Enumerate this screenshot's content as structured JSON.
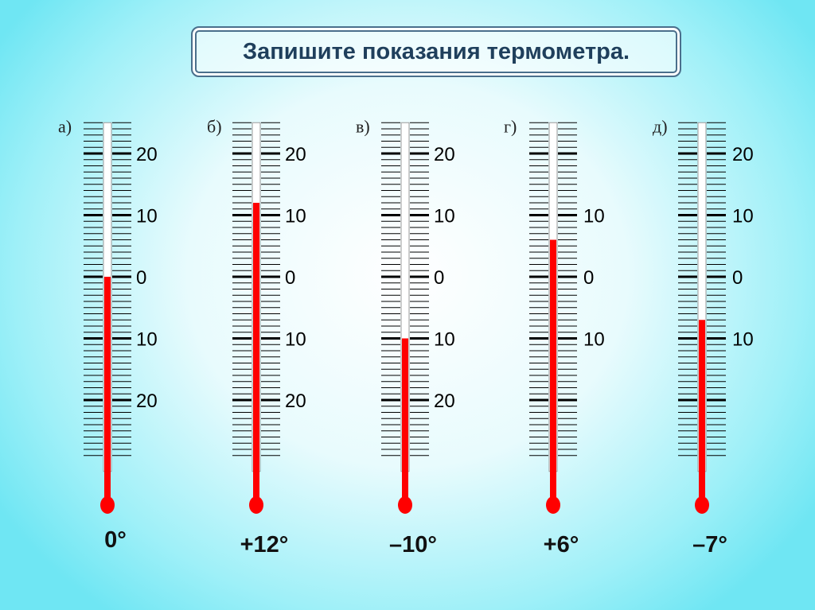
{
  "title": "Запишите показания термометра.",
  "colors": {
    "mercury": "#ff0000",
    "tick": "#000000",
    "frame": "#4a6f8c"
  },
  "scale": {
    "min": -29,
    "max": 25,
    "step": 1,
    "major_step": 10
  },
  "thermometers": [
    {
      "letter": "а)",
      "value": 0,
      "answer": "0°",
      "labels": [
        {
          "v": 20,
          "t": "20"
        },
        {
          "v": 10,
          "t": "10"
        },
        {
          "v": 0,
          "t": "0"
        },
        {
          "v": -10,
          "t": "10"
        },
        {
          "v": -20,
          "t": "20"
        }
      ]
    },
    {
      "letter": "б)",
      "value": 12,
      "answer": "+12°",
      "labels": [
        {
          "v": 20,
          "t": "20"
        },
        {
          "v": 10,
          "t": "10"
        },
        {
          "v": 0,
          "t": "0"
        },
        {
          "v": -10,
          "t": "10"
        },
        {
          "v": -20,
          "t": "20"
        }
      ]
    },
    {
      "letter": "в)",
      "value": -10,
      "answer": "–10°",
      "labels": [
        {
          "v": 20,
          "t": "20"
        },
        {
          "v": 10,
          "t": "10"
        },
        {
          "v": 0,
          "t": "0"
        },
        {
          "v": -10,
          "t": "10"
        },
        {
          "v": -20,
          "t": "20"
        }
      ]
    },
    {
      "letter": "г)",
      "value": 6,
      "answer": "+6°",
      "labels": [
        {
          "v": 10,
          "t": "10"
        },
        {
          "v": 0,
          "t": "0"
        },
        {
          "v": -10,
          "t": "10"
        }
      ]
    },
    {
      "letter": "д)",
      "value": -7,
      "answer": "–7°",
      "labels": [
        {
          "v": 20,
          "t": "20"
        },
        {
          "v": 10,
          "t": "10"
        },
        {
          "v": 0,
          "t": "0"
        },
        {
          "v": -10,
          "t": "10"
        }
      ]
    }
  ]
}
